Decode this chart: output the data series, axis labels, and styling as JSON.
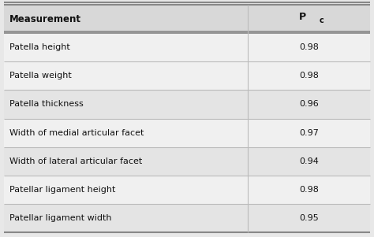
{
  "header_col0": "Measurement",
  "header_col1_main": "P",
  "header_col1_sub": "c",
  "rows": [
    [
      "Patella height",
      "0.98"
    ],
    [
      "Patella weight",
      "0.98"
    ],
    [
      "Patella thickness",
      "0.96"
    ],
    [
      "Width of medial articular facet",
      "0.97"
    ],
    [
      "Width of lateral articular facet",
      "0.94"
    ],
    [
      "Patellar ligament height",
      "0.98"
    ],
    [
      "Patellar ligament width",
      "0.95"
    ]
  ],
  "col_split": 0.665,
  "fig_bg": "#e8e8e8",
  "header_bg": "#d8d8d8",
  "row_bg_light": "#f0f0f0",
  "row_bg_mid": "#e4e4e4",
  "border_dark": "#888888",
  "border_light": "#bbbbbb",
  "text_color": "#111111",
  "header_font_size": 8.5,
  "cell_font_size": 8.0
}
